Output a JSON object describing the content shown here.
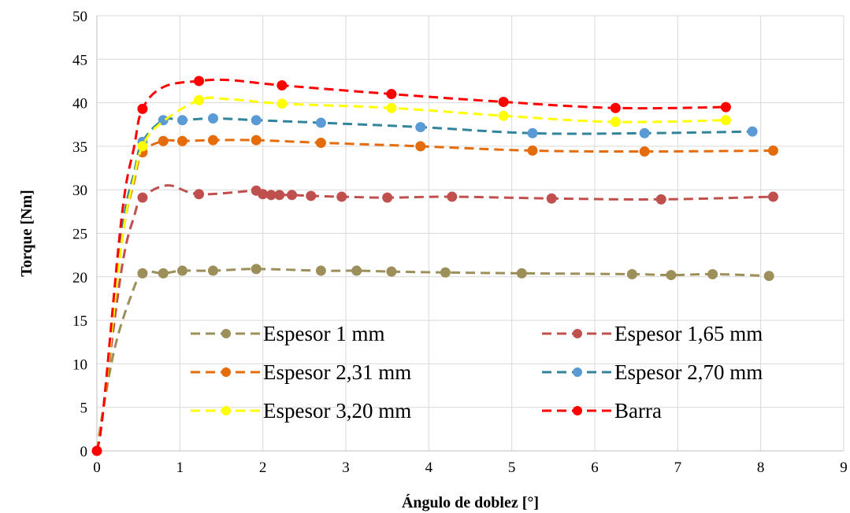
{
  "chart_data": {
    "type": "line",
    "title": "",
    "xlabel": "Ángulo de doblez [°]",
    "ylabel": "Torque [Nm]",
    "xlim": [
      0,
      9
    ],
    "ylim": [
      0,
      50
    ],
    "x_ticks": [
      0,
      1,
      2,
      3,
      4,
      5,
      6,
      7,
      8,
      9
    ],
    "y_ticks": [
      0,
      5,
      10,
      15,
      20,
      25,
      30,
      35,
      40,
      45,
      50
    ],
    "grid": true,
    "legend_position": "bottom-center inside plot, two columns",
    "series": [
      {
        "name": "Espesor 1 mm",
        "color": "#9c8f5a",
        "markers": [
          [
            0.55,
            20.4
          ],
          [
            0.8,
            20.4
          ],
          [
            1.03,
            20.7
          ],
          [
            1.4,
            20.7
          ],
          [
            1.92,
            20.9
          ],
          [
            2.7,
            20.7
          ],
          [
            3.13,
            20.7
          ],
          [
            3.55,
            20.6
          ],
          [
            4.2,
            20.5
          ],
          [
            5.12,
            20.4
          ],
          [
            6.45,
            20.3
          ],
          [
            6.92,
            20.2
          ],
          [
            7.42,
            20.3
          ],
          [
            8.1,
            20.1
          ]
        ],
        "curve": [
          [
            0,
            0
          ],
          [
            0.08,
            5
          ],
          [
            0.22,
            12
          ],
          [
            0.4,
            17.5
          ],
          [
            0.55,
            20.4
          ],
          [
            0.8,
            20.4
          ],
          [
            1.03,
            20.7
          ],
          [
            1.4,
            20.7
          ],
          [
            1.92,
            20.9
          ],
          [
            2.7,
            20.7
          ],
          [
            3.13,
            20.7
          ],
          [
            3.55,
            20.6
          ],
          [
            4.2,
            20.5
          ],
          [
            5.12,
            20.4
          ],
          [
            6.45,
            20.3
          ],
          [
            6.92,
            20.2
          ],
          [
            7.42,
            20.3
          ],
          [
            8.1,
            20.1
          ]
        ]
      },
      {
        "name": "Espesor 1,65 mm",
        "color": "#c0504d",
        "markers": [
          [
            0.55,
            29.1
          ],
          [
            1.23,
            29.5
          ],
          [
            1.92,
            29.9
          ],
          [
            2.0,
            29.5
          ],
          [
            2.1,
            29.4
          ],
          [
            2.2,
            29.4
          ],
          [
            2.35,
            29.4
          ],
          [
            2.58,
            29.3
          ],
          [
            2.95,
            29.2
          ],
          [
            3.5,
            29.1
          ],
          [
            4.28,
            29.2
          ],
          [
            5.48,
            29.0
          ],
          [
            6.8,
            28.9
          ],
          [
            8.15,
            29.2
          ]
        ],
        "curve": [
          [
            0,
            0
          ],
          [
            0.08,
            5
          ],
          [
            0.3,
            21
          ],
          [
            0.45,
            27
          ],
          [
            0.55,
            29.1
          ],
          [
            0.85,
            30.5
          ],
          [
            1.23,
            29.5
          ],
          [
            1.92,
            29.9
          ],
          [
            2.0,
            29.5
          ],
          [
            2.1,
            29.4
          ],
          [
            2.2,
            29.4
          ],
          [
            2.35,
            29.4
          ],
          [
            2.58,
            29.3
          ],
          [
            2.95,
            29.2
          ],
          [
            3.5,
            29.1
          ],
          [
            4.28,
            29.2
          ],
          [
            5.48,
            29.0
          ],
          [
            6.8,
            28.9
          ],
          [
            8.15,
            29.2
          ]
        ]
      },
      {
        "name": "Espesor 2,31 mm",
        "color": "#e46c0a",
        "markers": [
          [
            0.55,
            34.3
          ],
          [
            0.8,
            35.6
          ],
          [
            1.03,
            35.6
          ],
          [
            1.4,
            35.7
          ],
          [
            1.92,
            35.7
          ],
          [
            2.7,
            35.4
          ],
          [
            3.9,
            35.0
          ],
          [
            5.25,
            34.5
          ],
          [
            6.6,
            34.4
          ],
          [
            8.15,
            34.5
          ]
        ],
        "curve": [
          [
            0,
            0
          ],
          [
            0.08,
            5
          ],
          [
            0.3,
            24
          ],
          [
            0.45,
            31
          ],
          [
            0.55,
            34.3
          ],
          [
            0.8,
            35.6
          ],
          [
            1.03,
            35.6
          ],
          [
            1.4,
            35.7
          ],
          [
            1.92,
            35.7
          ],
          [
            2.7,
            35.4
          ],
          [
            3.9,
            35.0
          ],
          [
            5.25,
            34.5
          ],
          [
            6.6,
            34.4
          ],
          [
            8.15,
            34.5
          ]
        ]
      },
      {
        "name": "Espesor 2,70 mm",
        "color": "#5b9bd5",
        "line_color": "#31849b",
        "markers": [
          [
            0.55,
            35.5
          ],
          [
            0.8,
            38.0
          ],
          [
            1.03,
            38.0
          ],
          [
            1.4,
            38.2
          ],
          [
            1.92,
            38.0
          ],
          [
            2.7,
            37.7
          ],
          [
            3.9,
            37.2
          ],
          [
            5.25,
            36.5
          ],
          [
            6.6,
            36.5
          ],
          [
            7.9,
            36.7
          ]
        ],
        "curve": [
          [
            0,
            0
          ],
          [
            0.08,
            5
          ],
          [
            0.3,
            25
          ],
          [
            0.45,
            32
          ],
          [
            0.55,
            35.5
          ],
          [
            0.8,
            38.0
          ],
          [
            1.03,
            38.0
          ],
          [
            1.4,
            38.2
          ],
          [
            1.92,
            38.0
          ],
          [
            2.7,
            37.7
          ],
          [
            3.9,
            37.2
          ],
          [
            5.25,
            36.5
          ],
          [
            6.6,
            36.5
          ],
          [
            7.9,
            36.7
          ]
        ]
      },
      {
        "name": "Espesor 3,20 mm",
        "color": "#ffff00",
        "markers": [
          [
            0.55,
            35.0
          ],
          [
            1.23,
            40.3
          ],
          [
            2.23,
            39.9
          ],
          [
            3.55,
            39.4
          ],
          [
            4.9,
            38.5
          ],
          [
            6.25,
            37.8
          ],
          [
            7.58,
            38.0
          ]
        ],
        "curve": [
          [
            0,
            0
          ],
          [
            0.08,
            5
          ],
          [
            0.3,
            24
          ],
          [
            0.45,
            31.5
          ],
          [
            0.55,
            35.0
          ],
          [
            0.75,
            37.5
          ],
          [
            1.23,
            40.3
          ],
          [
            1.6,
            40.4
          ],
          [
            2.23,
            39.9
          ],
          [
            3.55,
            39.4
          ],
          [
            4.9,
            38.5
          ],
          [
            6.25,
            37.8
          ],
          [
            7.58,
            38.0
          ]
        ]
      },
      {
        "name": "Barra",
        "color": "#ff0000",
        "markers": [
          [
            0,
            0
          ],
          [
            0.55,
            39.3
          ],
          [
            1.23,
            42.5
          ],
          [
            2.23,
            42.0
          ],
          [
            3.55,
            41.0
          ],
          [
            4.9,
            40.1
          ],
          [
            6.25,
            39.4
          ],
          [
            7.58,
            39.5
          ]
        ],
        "curve": [
          [
            0,
            0
          ],
          [
            0.08,
            5
          ],
          [
            0.3,
            27
          ],
          [
            0.45,
            35
          ],
          [
            0.55,
            39.3
          ],
          [
            0.8,
            41.8
          ],
          [
            1.23,
            42.5
          ],
          [
            1.6,
            42.6
          ],
          [
            2.23,
            42.0
          ],
          [
            3.55,
            41.0
          ],
          [
            4.9,
            40.1
          ],
          [
            6.25,
            39.4
          ],
          [
            7.58,
            39.5
          ]
        ]
      }
    ]
  }
}
